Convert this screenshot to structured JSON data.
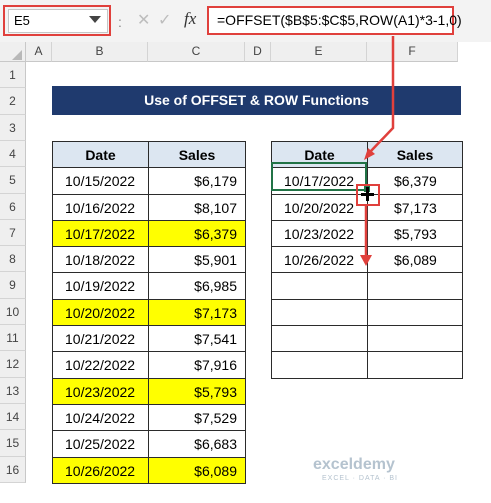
{
  "formula_bar": {
    "name_box": "E5",
    "separator": ":",
    "cancel_icon": "close-icon",
    "enter_icon": "check-icon",
    "fx": "fx",
    "formula": "=OFFSET($B$5:$C$5,ROW(A1)*3-1,0)"
  },
  "columns": [
    "A",
    "B",
    "C",
    "D",
    "E",
    "F"
  ],
  "rows": [
    "1",
    "2",
    "3",
    "4",
    "5",
    "6",
    "7",
    "8",
    "9",
    "10",
    "11",
    "12",
    "13",
    "14",
    "15",
    "16"
  ],
  "title": "Use of OFFSET & ROW Functions",
  "source_table": {
    "headers": [
      "Date",
      "Sales"
    ],
    "rows": [
      {
        "date": "10/15/2022",
        "sales": "$6,179",
        "highlight": false
      },
      {
        "date": "10/16/2022",
        "sales": "$8,107",
        "highlight": false
      },
      {
        "date": "10/17/2022",
        "sales": "$6,379",
        "highlight": true
      },
      {
        "date": "10/18/2022",
        "sales": "$5,901",
        "highlight": false
      },
      {
        "date": "10/19/2022",
        "sales": "$6,985",
        "highlight": false
      },
      {
        "date": "10/20/2022",
        "sales": "$7,173",
        "highlight": true
      },
      {
        "date": "10/21/2022",
        "sales": "$7,541",
        "highlight": false
      },
      {
        "date": "10/22/2022",
        "sales": "$7,916",
        "highlight": false
      },
      {
        "date": "10/23/2022",
        "sales": "$5,793",
        "highlight": true
      },
      {
        "date": "10/24/2022",
        "sales": "$7,529",
        "highlight": false
      },
      {
        "date": "10/25/2022",
        "sales": "$6,683",
        "highlight": false
      },
      {
        "date": "10/26/2022",
        "sales": "$6,089",
        "highlight": true
      }
    ]
  },
  "result_table": {
    "headers": [
      "Date",
      "Sales"
    ],
    "rows": [
      {
        "date": "10/17/2022",
        "sales": "$6,379"
      },
      {
        "date": "10/20/2022",
        "sales": "$7,173"
      },
      {
        "date": "10/23/2022",
        "sales": "$5,793"
      },
      {
        "date": "10/26/2022",
        "sales": "$6,089"
      },
      {
        "date": "",
        "sales": ""
      },
      {
        "date": "",
        "sales": ""
      },
      {
        "date": "",
        "sales": ""
      },
      {
        "date": "",
        "sales": ""
      }
    ]
  },
  "watermark": {
    "name": "exceldemy",
    "tagline": "EXCEL · DATA · BI"
  },
  "colors": {
    "highlight": "#ffff00",
    "title_bg": "#1f3a6e",
    "header_bg": "#dce6f1",
    "annotation": "#e0403c",
    "selection": "#217346"
  }
}
